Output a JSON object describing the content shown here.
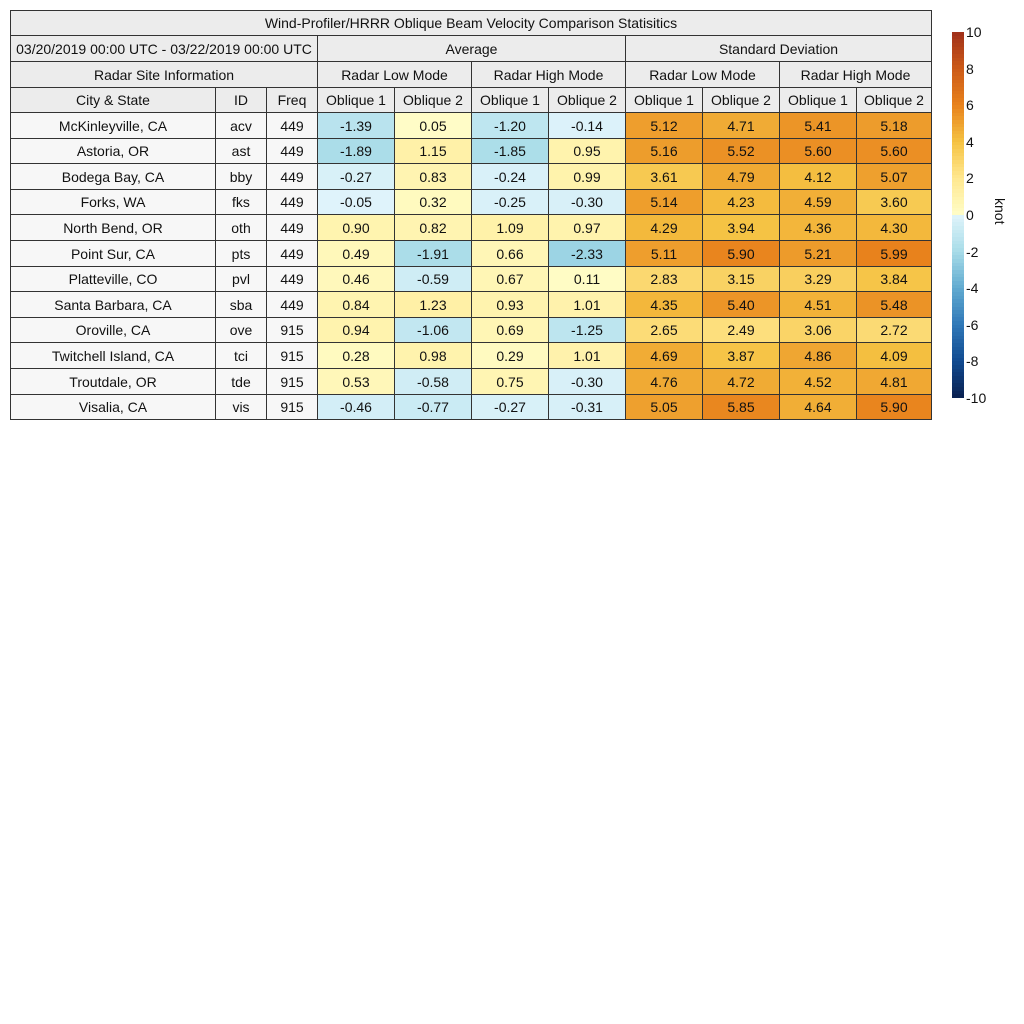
{
  "chart_data": {
    "type": "heatmap",
    "title": "Wind-Profiler/HRRR Oblique Beam Velocity Comparison Statisitics",
    "date_range": "03/20/2019 00:00 UTC - 03/22/2019 00:00 UTC",
    "group_headers": {
      "average": "Average",
      "std": "Standard Deviation",
      "site_info": "Radar Site Information"
    },
    "mode_headers": [
      "Radar Low Mode",
      "Radar High Mode",
      "Radar Low Mode",
      "Radar High Mode"
    ],
    "column_headers": [
      "City & State",
      "ID",
      "Freq",
      "Oblique 1",
      "Oblique 2",
      "Oblique 1",
      "Oblique 2",
      "Oblique 1",
      "Oblique 2",
      "Oblique 1",
      "Oblique 2"
    ],
    "rows": [
      {
        "city": "McKinleyville, CA",
        "id": "acv",
        "freq": "449",
        "values": [
          "-1.39",
          "0.05",
          "-1.20",
          "-0.14",
          "5.12",
          "4.71",
          "5.41",
          "5.18"
        ]
      },
      {
        "city": "Astoria, OR",
        "id": "ast",
        "freq": "449",
        "values": [
          "-1.89",
          "1.15",
          "-1.85",
          "0.95",
          "5.16",
          "5.52",
          "5.60",
          "5.60"
        ]
      },
      {
        "city": "Bodega Bay, CA",
        "id": "bby",
        "freq": "449",
        "values": [
          "-0.27",
          "0.83",
          "-0.24",
          "0.99",
          "3.61",
          "4.79",
          "4.12",
          "5.07"
        ]
      },
      {
        "city": "Forks, WA",
        "id": "fks",
        "freq": "449",
        "values": [
          "-0.05",
          "0.32",
          "-0.25",
          "-0.30",
          "5.14",
          "4.23",
          "4.59",
          "3.60"
        ]
      },
      {
        "city": "North Bend, OR",
        "id": "oth",
        "freq": "449",
        "values": [
          "0.90",
          "0.82",
          "1.09",
          "0.97",
          "4.29",
          "3.94",
          "4.36",
          "4.30"
        ]
      },
      {
        "city": "Point Sur, CA",
        "id": "pts",
        "freq": "449",
        "values": [
          "0.49",
          "-1.91",
          "0.66",
          "-2.33",
          "5.11",
          "5.90",
          "5.21",
          "5.99"
        ]
      },
      {
        "city": "Platteville, CO",
        "id": "pvl",
        "freq": "449",
        "values": [
          "0.46",
          "-0.59",
          "0.67",
          "0.11",
          "2.83",
          "3.15",
          "3.29",
          "3.84"
        ]
      },
      {
        "city": "Santa Barbara, CA",
        "id": "sba",
        "freq": "449",
        "values": [
          "0.84",
          "1.23",
          "0.93",
          "1.01",
          "4.35",
          "5.40",
          "4.51",
          "5.48"
        ]
      },
      {
        "city": "Oroville, CA",
        "id": "ove",
        "freq": "915",
        "values": [
          "0.94",
          "-1.06",
          "0.69",
          "-1.25",
          "2.65",
          "2.49",
          "3.06",
          "2.72"
        ]
      },
      {
        "city": "Twitchell Island, CA",
        "id": "tci",
        "freq": "915",
        "values": [
          "0.28",
          "0.98",
          "0.29",
          "1.01",
          "4.69",
          "3.87",
          "4.86",
          "4.09"
        ]
      },
      {
        "city": "Troutdale, OR",
        "id": "tde",
        "freq": "915",
        "values": [
          "0.53",
          "-0.58",
          "0.75",
          "-0.30",
          "4.76",
          "4.72",
          "4.52",
          "4.81"
        ]
      },
      {
        "city": "Visalia, CA",
        "id": "vis",
        "freq": "915",
        "values": [
          "-0.46",
          "-0.77",
          "-0.27",
          "-0.31",
          "5.05",
          "5.85",
          "4.64",
          "5.90"
        ]
      }
    ],
    "colorbar": {
      "label": "knot",
      "range": [
        -10,
        10
      ],
      "ticks": [
        "10",
        "8",
        "6",
        "4",
        "2",
        "0",
        "-2",
        "-4",
        "-6",
        "-8",
        "-10"
      ]
    },
    "colors": {
      "neg_stops": [
        "#e0f4fb",
        "#a8dce8",
        "#60aad0",
        "#3078b8",
        "#104a90",
        "#0a2050"
      ],
      "pos_stops": [
        "#fffdc8",
        "#ffe890",
        "#f5c242",
        "#e8821c",
        "#cc5a18",
        "#a0301a"
      ]
    }
  }
}
